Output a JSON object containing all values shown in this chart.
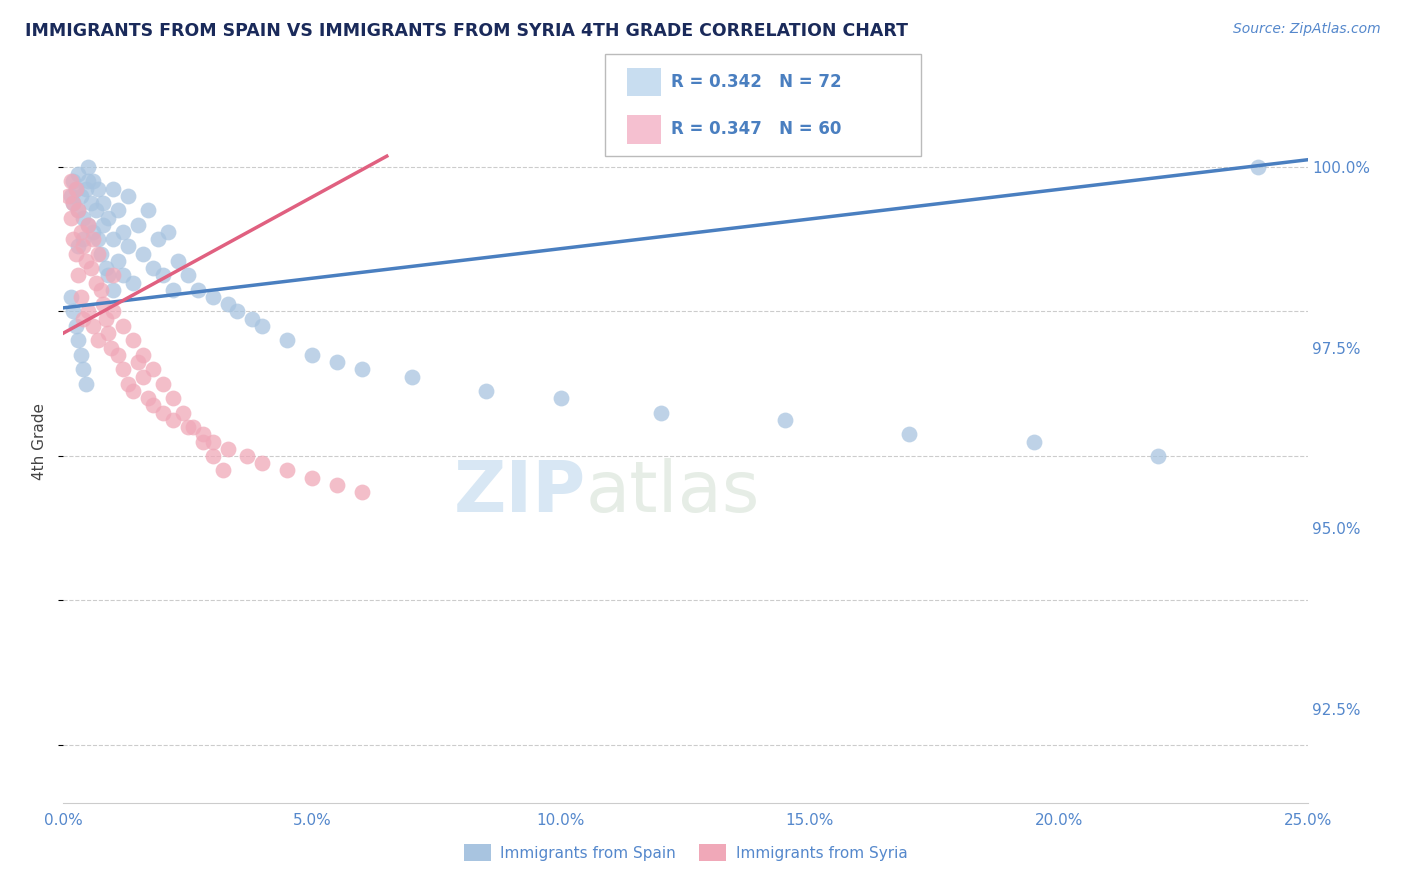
{
  "title": "IMMIGRANTS FROM SPAIN VS IMMIGRANTS FROM SYRIA 4TH GRADE CORRELATION CHART",
  "source": "Source: ZipAtlas.com",
  "ylabel": "4th Grade",
  "y_ticks": [
    92.5,
    95.0,
    97.5,
    100.0
  ],
  "y_tick_labels": [
    "92.5%",
    "95.0%",
    "97.5%",
    "100.0%"
  ],
  "xlim": [
    0.0,
    25.0
  ],
  "ylim": [
    91.2,
    101.2
  ],
  "spain_R": 0.342,
  "spain_N": 72,
  "syria_R": 0.347,
  "syria_N": 60,
  "spain_color": "#a8c4e0",
  "syria_color": "#f0a8b8",
  "spain_line_color": "#4a7fc0",
  "syria_line_color": "#e06080",
  "legend_box_color": "#c8ddf0",
  "legend_box_color2": "#f5c0d0",
  "watermark_zip": "ZIP",
  "watermark_atlas": "atlas",
  "background_color": "#ffffff",
  "grid_color": "#cccccc",
  "title_color": "#1a2a5a",
  "axis_color": "#5588cc",
  "spain_line_x": [
    0.0,
    25.0
  ],
  "spain_line_y": [
    98.05,
    100.1
  ],
  "syria_line_x": [
    0.0,
    6.5
  ],
  "syria_line_y": [
    97.7,
    100.15
  ],
  "spain_data_x": [
    0.15,
    0.2,
    0.2,
    0.25,
    0.3,
    0.3,
    0.3,
    0.35,
    0.4,
    0.4,
    0.45,
    0.5,
    0.5,
    0.5,
    0.55,
    0.6,
    0.6,
    0.65,
    0.7,
    0.7,
    0.75,
    0.8,
    0.8,
    0.85,
    0.9,
    0.9,
    1.0,
    1.0,
    1.0,
    1.1,
    1.1,
    1.2,
    1.2,
    1.3,
    1.3,
    1.4,
    1.5,
    1.6,
    1.7,
    1.8,
    1.9,
    2.0,
    2.1,
    2.2,
    2.3,
    2.5,
    2.7,
    3.0,
    3.3,
    3.5,
    3.8,
    4.0,
    4.5,
    5.0,
    5.5,
    6.0,
    7.0,
    8.5,
    10.0,
    12.0,
    14.5,
    17.0,
    19.5,
    22.0,
    24.0,
    0.15,
    0.2,
    0.25,
    0.3,
    0.35,
    0.4,
    0.45
  ],
  "spain_data_y": [
    99.6,
    99.8,
    99.5,
    99.7,
    99.9,
    99.4,
    98.9,
    99.6,
    99.3,
    99.0,
    99.7,
    100.0,
    99.8,
    99.2,
    99.5,
    99.1,
    99.8,
    99.4,
    99.0,
    99.7,
    98.8,
    99.5,
    99.2,
    98.6,
    99.3,
    98.5,
    99.7,
    99.0,
    98.3,
    99.4,
    98.7,
    99.1,
    98.5,
    98.9,
    99.6,
    98.4,
    99.2,
    98.8,
    99.4,
    98.6,
    99.0,
    98.5,
    99.1,
    98.3,
    98.7,
    98.5,
    98.3,
    98.2,
    98.1,
    98.0,
    97.9,
    97.8,
    97.6,
    97.4,
    97.3,
    97.2,
    97.1,
    96.9,
    96.8,
    96.6,
    96.5,
    96.3,
    96.2,
    96.0,
    100.0,
    98.2,
    98.0,
    97.8,
    97.6,
    97.4,
    97.2,
    97.0
  ],
  "syria_data_x": [
    0.1,
    0.15,
    0.15,
    0.2,
    0.2,
    0.25,
    0.25,
    0.3,
    0.3,
    0.35,
    0.35,
    0.4,
    0.4,
    0.45,
    0.5,
    0.5,
    0.55,
    0.6,
    0.6,
    0.65,
    0.7,
    0.7,
    0.75,
    0.8,
    0.85,
    0.9,
    0.95,
    1.0,
    1.1,
    1.2,
    1.3,
    1.4,
    1.5,
    1.6,
    1.7,
    1.8,
    2.0,
    2.2,
    2.5,
    2.8,
    3.0,
    3.3,
    3.7,
    4.0,
    4.5,
    5.0,
    5.5,
    6.0,
    1.0,
    1.2,
    1.4,
    1.6,
    1.8,
    2.0,
    2.2,
    2.4,
    2.6,
    2.8,
    3.0,
    3.2
  ],
  "syria_data_y": [
    99.6,
    99.8,
    99.3,
    99.5,
    99.0,
    99.7,
    98.8,
    99.4,
    98.5,
    99.1,
    98.2,
    98.9,
    97.9,
    98.7,
    99.2,
    98.0,
    98.6,
    99.0,
    97.8,
    98.4,
    98.8,
    97.6,
    98.3,
    98.1,
    97.9,
    97.7,
    97.5,
    98.5,
    97.4,
    97.2,
    97.0,
    96.9,
    97.3,
    97.1,
    96.8,
    96.7,
    96.6,
    96.5,
    96.4,
    96.3,
    96.2,
    96.1,
    96.0,
    95.9,
    95.8,
    95.7,
    95.6,
    95.5,
    98.0,
    97.8,
    97.6,
    97.4,
    97.2,
    97.0,
    96.8,
    96.6,
    96.4,
    96.2,
    96.0,
    95.8
  ]
}
